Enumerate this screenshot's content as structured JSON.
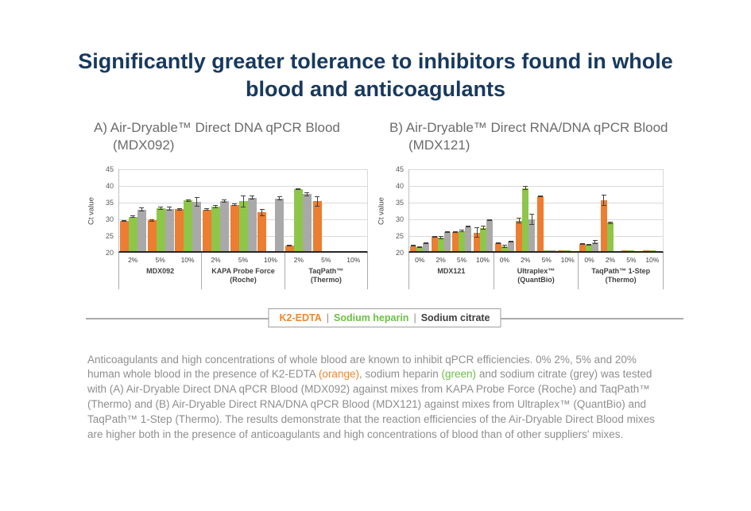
{
  "title": {
    "lines": [
      "Significantly greater tolerance to inhibitors found in whole",
      "blood and anticoagulants"
    ]
  },
  "colors": {
    "title_navy": "#17395F",
    "bar_orange": "#ED7D31",
    "bar_green": "#8EC649",
    "bar_grey": "#A9A9A9",
    "text_orange": "#F0862B",
    "text_green": "#6CBF45",
    "caption_grey": "#8E8E8E",
    "gridline": "#D9D9D9"
  },
  "legend": {
    "separator": "|",
    "items": [
      {
        "label": "K2-EDTA",
        "color": "#F0862B"
      },
      {
        "label": "Sodium heparin",
        "color": "#6CBF45"
      },
      {
        "label": "Sodium citrate",
        "color": "#3F3F3F"
      }
    ]
  },
  "caption": {
    "part1": "Anticoagulants and high concentrations of whole blood are known to inhibit qPCR efficiencies. 0% 2%, 5% and 20% human whole blood in the presence of K2-EDTA ",
    "orange": "(orange)",
    "part2": ", sodium heparin ",
    "green": "(green)",
    "part3": " and sodium citrate (grey) was tested with (A) Air-Dryable Direct DNA qPCR Blood (MDX092) against mixes from KAPA Probe Force (Roche) and TaqPath™ (Thermo) and (B) Air-Dryable Direct RNA/DNA qPCR Blood (MDX121) against mixes from Ultraplex™ (QuantBio) and TaqPath™ 1-Step (Thermo). The results demonstrate that the reaction efficiencies of the Air-Dryable Direct Blood mixes are higher both in the presence of anticoagulants and high concentrations of blood than of other suppliers' mixes."
  },
  "chart_data": [
    {
      "type": "bar",
      "heading": "A) Air-Dryable™ Direct DNA qPCR Blood (MDX092)",
      "ylabel": "Ct value",
      "ylim": [
        20,
        45
      ],
      "ystep": 5,
      "grid": true,
      "legend_position": "bottom-shared",
      "series": [
        "K2-EDTA",
        "Sodium heparin",
        "Sodium citrate"
      ],
      "series_colors": [
        "#ED7D31",
        "#8EC649",
        "#A9A9A9"
      ],
      "groups": [
        {
          "label": "MDX092",
          "categories": [
            "2%",
            "5%",
            "10%"
          ],
          "values": [
            [
              29.0,
              30.3,
              32.4
            ],
            [
              29.2,
              32.8,
              32.7
            ],
            [
              32.5,
              35.1,
              34.7
            ]
          ],
          "errors": [
            [
              0.3,
              0.3,
              0.6
            ],
            [
              0.3,
              0.5,
              0.7
            ],
            [
              0.3,
              0.4,
              1.5
            ]
          ]
        },
        {
          "label": "KAPA Probe Force\n(Roche)",
          "categories": [
            "2%",
            "5%",
            "10%"
          ],
          "values": [
            [
              32.4,
              33.4,
              35.0
            ],
            [
              33.9,
              34.9,
              36.0
            ],
            [
              31.6,
              null,
              35.8
            ]
          ],
          "errors": [
            [
              0.4,
              0.5,
              0.5
            ],
            [
              0.3,
              1.8,
              0.6
            ],
            [
              1.1,
              null,
              0.5
            ]
          ]
        },
        {
          "label": "TaqPath™\n(Thermo)",
          "categories": [
            "2%",
            "5%",
            "10%"
          ],
          "values": [
            [
              21.7,
              38.5,
              37.0
            ],
            [
              34.9,
              null,
              null
            ],
            [
              null,
              null,
              null
            ]
          ],
          "errors": [
            [
              0.2,
              0.3,
              0.5
            ],
            [
              1.5,
              null,
              null
            ],
            [
              null,
              null,
              null
            ]
          ]
        }
      ]
    },
    {
      "type": "bar",
      "heading": "B) Air-Dryable™ Direct RNA/DNA qPCR Blood (MDX121)",
      "ylabel": "Ct value",
      "ylim": [
        20,
        45
      ],
      "ystep": 5,
      "grid": true,
      "legend_position": "bottom-shared",
      "series": [
        "K2-EDTA",
        "Sodium heparin",
        "Sodium citrate"
      ],
      "series_colors": [
        "#ED7D31",
        "#8EC649",
        "#A9A9A9"
      ],
      "groups": [
        {
          "label": "MDX121",
          "categories": [
            "0%",
            "2%",
            "5%",
            "10%"
          ],
          "values": [
            [
              21.5,
              21.1,
              22.3
            ],
            [
              24.3,
              24.0,
              25.7
            ],
            [
              25.7,
              26.0,
              27.2
            ],
            [
              25.5,
              26.9,
              29.2
            ]
          ],
          "errors": [
            [
              0.2,
              0.2,
              0.3
            ],
            [
              0.2,
              0.5,
              0.2
            ],
            [
              0.2,
              0.4,
              0.2
            ],
            [
              1.5,
              0.6,
              0.2
            ]
          ]
        },
        {
          "label": "Ultraplex™\n(QuantBio)",
          "categories": [
            "0%",
            "2%",
            "5%",
            "10%"
          ],
          "values": [
            [
              22.3,
              21.5,
              22.9
            ],
            [
              29.1,
              38.9,
              29.5
            ],
            [
              36.4,
              20.3,
              20.3
            ],
            [
              20.3,
              20.3,
              null
            ]
          ],
          "errors": [
            [
              0.2,
              0.5,
              0.2
            ],
            [
              0.8,
              0.5,
              1.6
            ],
            [
              0.2,
              null,
              null
            ],
            [
              null,
              null,
              null
            ]
          ]
        },
        {
          "label": "TaqPath™ 1-Step\n(Thermo)",
          "categories": [
            "0%",
            "2%",
            "5%",
            "10%"
          ],
          "values": [
            [
              22.1,
              21.9,
              22.7
            ],
            [
              35.2,
              28.5,
              null
            ],
            [
              20.3,
              20.3,
              null
            ],
            [
              20.3,
              20.3,
              null
            ]
          ],
          "errors": [
            [
              0.2,
              0.2,
              0.6
            ],
            [
              1.7,
              0.4,
              null
            ],
            [
              null,
              null,
              null
            ],
            [
              null,
              null,
              null
            ]
          ]
        }
      ]
    }
  ]
}
